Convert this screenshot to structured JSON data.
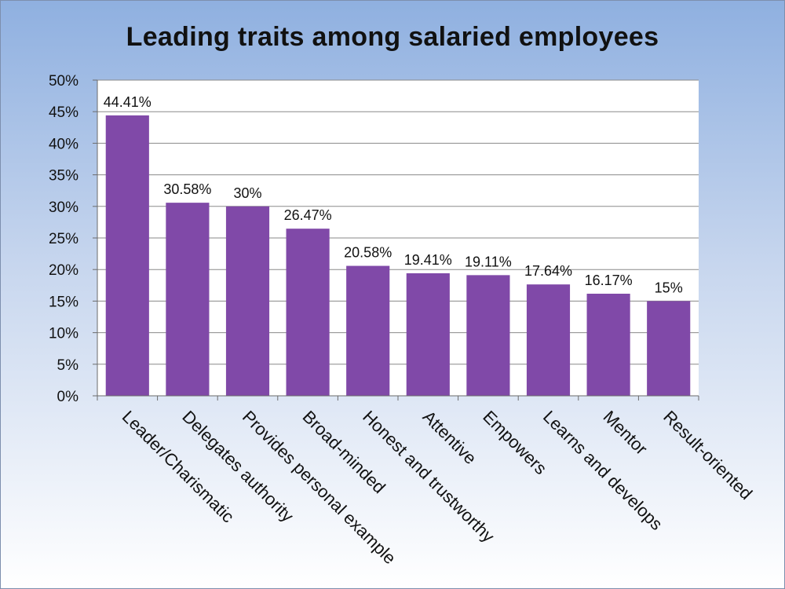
{
  "chart_data": {
    "type": "bar",
    "title": "Leading traits among salaried employees",
    "xlabel": "",
    "ylabel": "",
    "categories": [
      "Leader/Charismatic",
      "Delegates authority",
      "Provides personal example",
      "Broad-minded",
      "Honest and trustworthy",
      "Attentive",
      "Empowers",
      "Learns and develops",
      "Mentor",
      "Result-oriented"
    ],
    "values": [
      44.41,
      30.58,
      30,
      26.47,
      20.58,
      19.41,
      19.11,
      17.64,
      16.17,
      15
    ],
    "data_labels": [
      "44.41%",
      "30.58%",
      "30%",
      "26.47%",
      "20.58%",
      "19.41%",
      "19.11%",
      "17.64%",
      "16.17%",
      "15%"
    ],
    "ylim": [
      0,
      50
    ],
    "y_ticks": [
      0,
      5,
      10,
      15,
      20,
      25,
      30,
      35,
      40,
      45,
      50
    ],
    "y_tick_labels": [
      "0%",
      "5%",
      "10%",
      "15%",
      "20%",
      "25%",
      "30%",
      "35%",
      "40%",
      "45%",
      "50%"
    ],
    "grid": true,
    "legend": "none",
    "bar_color": "#8049a8",
    "plot_background": "#ffffff"
  }
}
